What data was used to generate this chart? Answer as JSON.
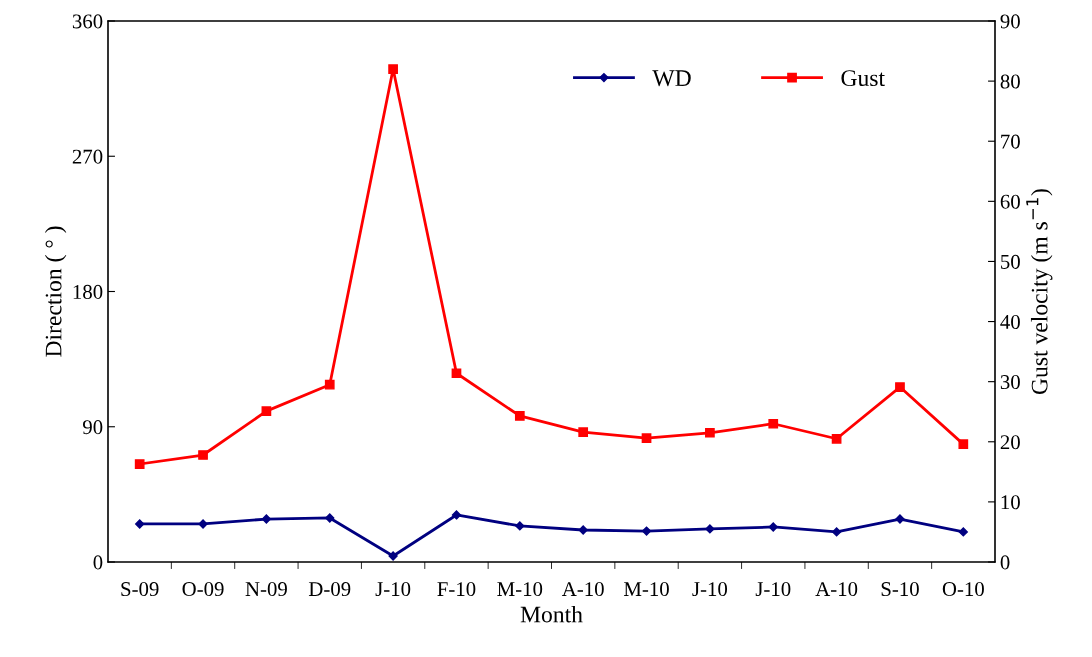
{
  "chart_data": {
    "type": "line",
    "xlabel": "Month",
    "ylabel": "Direction ( ° )",
    "y2label": "Gust velocity (m s$^{−1}$)",
    "categories": [
      "S-09",
      "O-09",
      "N-09",
      "D-09",
      "J-10",
      "F-10",
      "M-10",
      "A-10",
      "M-10",
      "J-10",
      "J-10",
      "A-10",
      "S-10",
      "O-10"
    ],
    "series": [
      {
        "name": "WD",
        "color": "#000080",
        "marker": "diamond",
        "values": [
          25.3,
          25.3,
          28.6,
          29.3,
          4.0,
          31.3,
          24.0,
          21.3,
          20.6,
          22.0,
          23.3,
          20.0,
          28.6,
          20.0
        ]
      },
      {
        "name": "Gust",
        "color": "#ff0000",
        "marker": "square",
        "axis": "y2",
        "values": [
          16.3,
          17.8,
          25.1,
          29.5,
          82.0,
          31.4,
          24.3,
          21.6,
          20.6,
          21.5,
          23.0,
          20.5,
          29.1,
          19.6
        ]
      }
    ],
    "ylim": [
      0,
      360
    ],
    "yticks": [
      0,
      90,
      180,
      270,
      360
    ],
    "y2lim": [
      0,
      90
    ],
    "y2ticks": [
      0,
      10,
      20,
      30,
      40,
      50,
      60,
      70,
      80,
      90
    ],
    "grid": false,
    "legend": "top right",
    "line_style": "solid"
  }
}
